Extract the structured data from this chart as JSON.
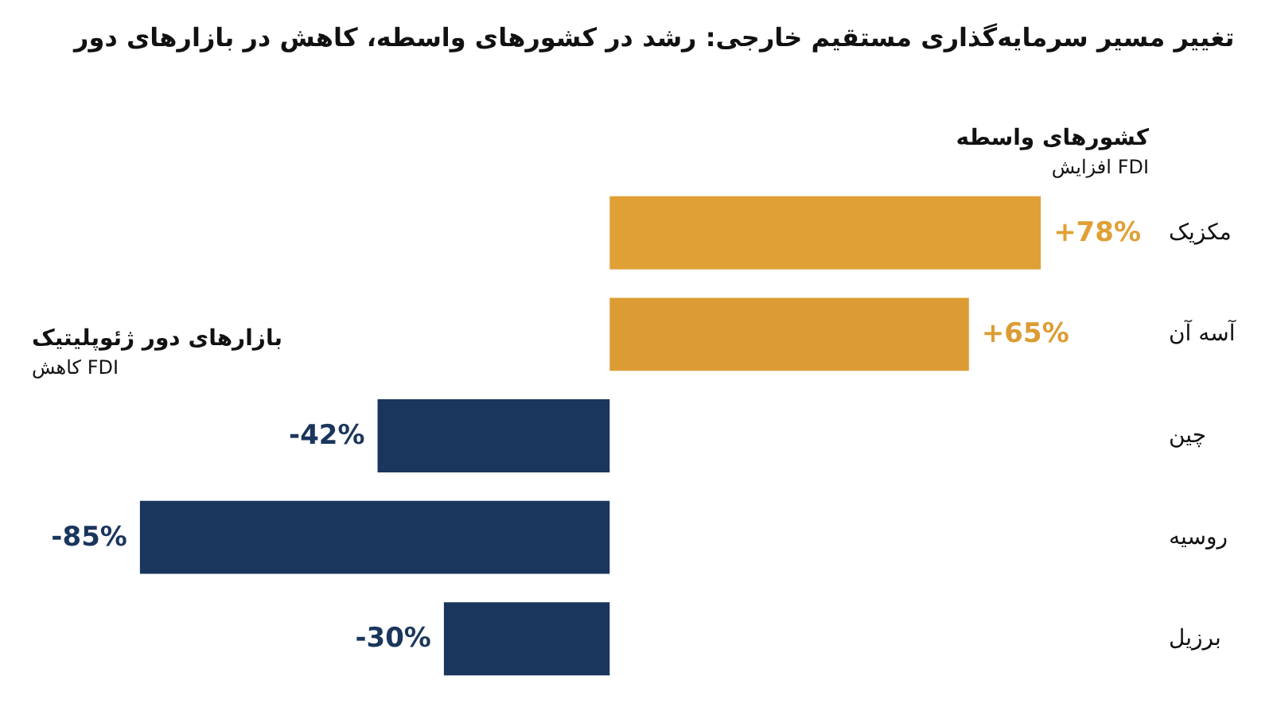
{
  "chart_data": {
    "type": "bar",
    "orientation": "horizontal",
    "title": "تغییر مسیر سرمایه‌گذاری مستقیم خارجی: رشد در کشورهای واسطه، کاهش در بازارهای دور",
    "categories": [
      "مکزیک",
      "آسه آن",
      "چین",
      "روسیه",
      "برزیل"
    ],
    "values": [
      78,
      65,
      -42,
      -85,
      -30
    ],
    "colors": [
      "#e0a035",
      "#dc9c33",
      "#1b365d",
      "#1b365d",
      "#1b365d"
    ],
    "value_labels": [
      "+78%",
      "+65%",
      "-42%",
      "-85%",
      "-30%"
    ],
    "annotations": [
      "کشورهای واسطه",
      "افزایش FDI",
      "بازارهای دور ژئوپلیتیک",
      "کاهش FDI"
    ]
  }
}
